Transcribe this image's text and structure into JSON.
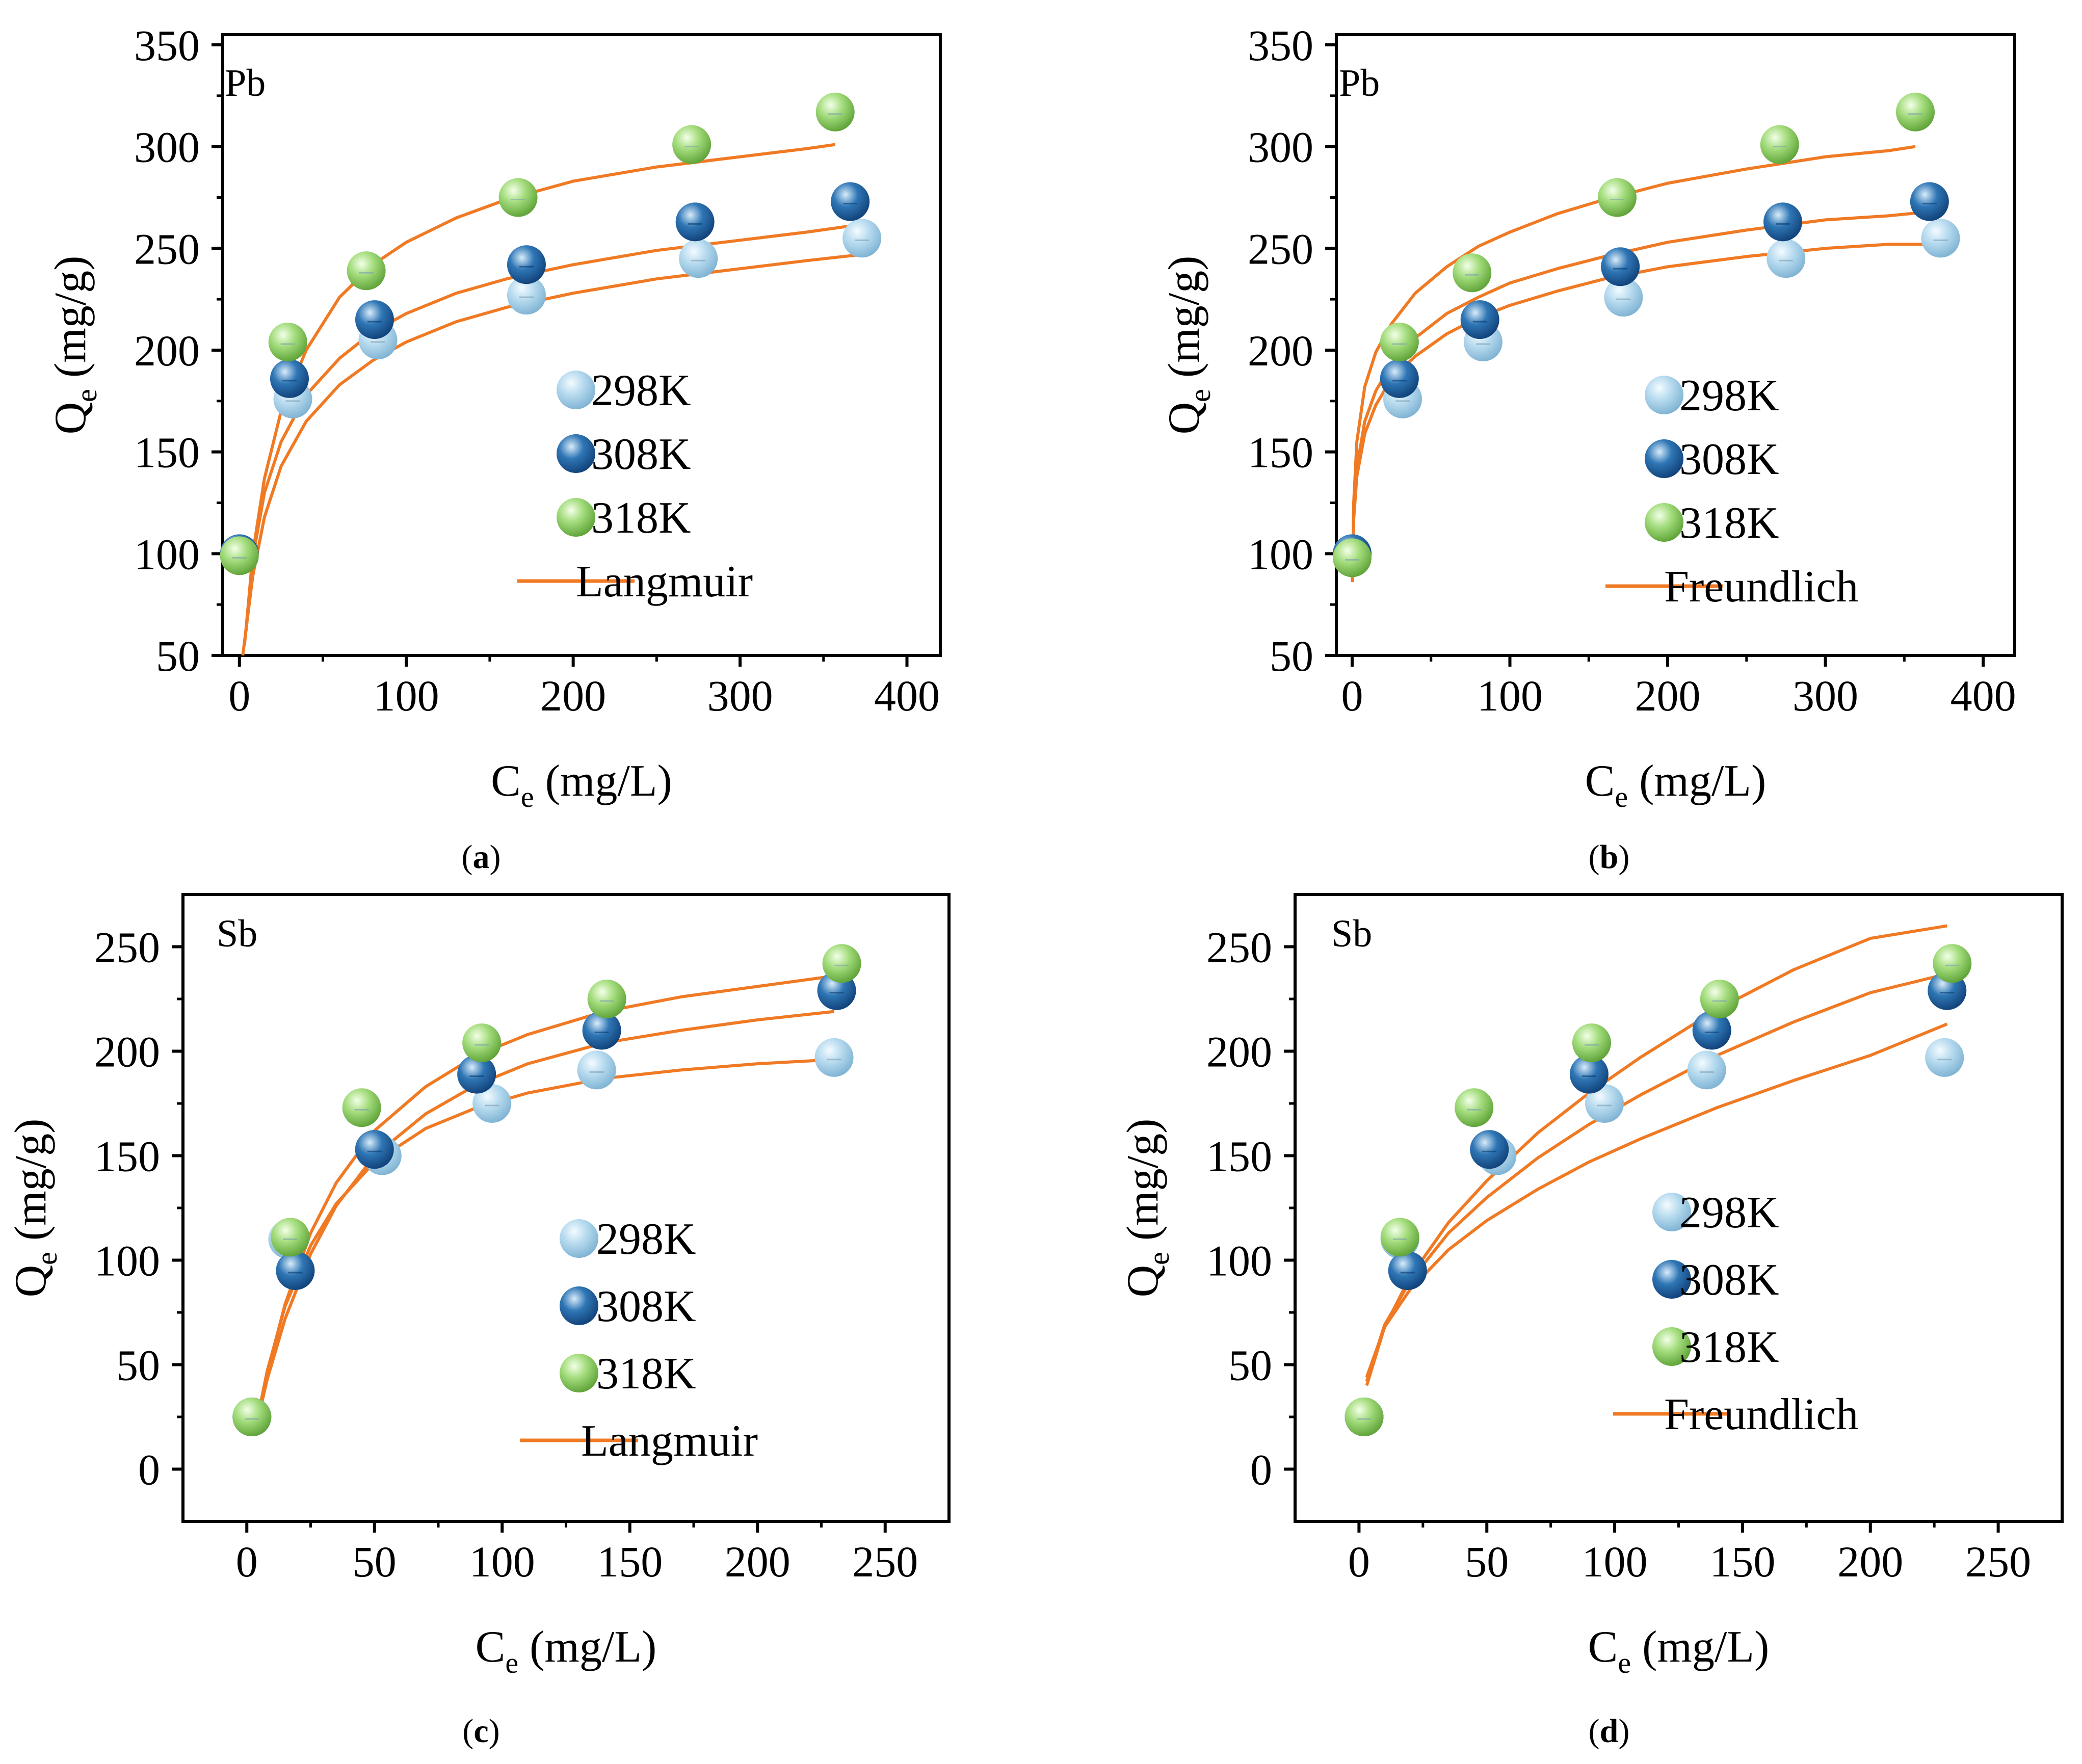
{
  "colors": {
    "fit_line": "#f07a24",
    "temp_298K": "#a9d3ec",
    "temp_308K": "#2f76b5",
    "temp_318K": "#9cdc72",
    "axis": "#000000"
  },
  "chart_data": [
    {
      "panel": "a",
      "caption": {
        "open": "(",
        "letter": "a",
        "close": ")"
      },
      "type": "scatter",
      "metal": "Pb",
      "model": "Langmuir",
      "xlabel": {
        "main": "C",
        "sub": "e",
        "unit": " (mg/L)"
      },
      "ylabel": {
        "main": "Q",
        "sub": "e",
        "unit": " (mg/g)"
      },
      "xlim": [
        -10,
        420
      ],
      "ylim": [
        50,
        355
      ],
      "xticks": [
        0,
        100,
        200,
        300,
        400
      ],
      "yticks": [
        50,
        100,
        150,
        200,
        250,
        300,
        350
      ],
      "xtick_labels": [
        "0",
        "100",
        "200",
        "300",
        "400"
      ],
      "ytick_labels": [
        "50",
        "100",
        "150",
        "200",
        "250",
        "300",
        "350"
      ],
      "series": [
        {
          "name": "298K",
          "x": [
            0,
            32,
            83,
            172,
            275,
            373
          ],
          "y": [
            100,
            176,
            205,
            227,
            245,
            255
          ]
        },
        {
          "name": "308K",
          "x": [
            0,
            30,
            81,
            172,
            273,
            366
          ],
          "y": [
            100,
            186,
            215,
            242,
            263,
            273
          ]
        },
        {
          "name": "318K",
          "x": [
            0,
            29,
            76,
            167,
            271,
            357
          ],
          "y": [
            99,
            204,
            239,
            275,
            301,
            317
          ]
        }
      ],
      "fits": [
        {
          "name": "Langmuir 298K",
          "x": [
            2,
            8,
            15,
            25,
            40,
            60,
            80,
            100,
            130,
            160,
            200,
            250,
            300,
            340,
            373
          ],
          "y": [
            50,
            89,
            118,
            143,
            165,
            183,
            195,
            204,
            214,
            221,
            228,
            235,
            240,
            244,
            247
          ]
        },
        {
          "name": "Langmuir 308K",
          "x": [
            3,
            8,
            15,
            25,
            40,
            60,
            80,
            100,
            130,
            160,
            200,
            250,
            300,
            340,
            366
          ],
          "y": [
            55,
            98,
            130,
            155,
            178,
            196,
            209,
            218,
            228,
            235,
            242,
            249,
            254,
            258,
            261
          ]
        },
        {
          "name": "Langmuir 318K",
          "x": [
            4,
            8,
            15,
            25,
            40,
            60,
            80,
            100,
            130,
            160,
            200,
            250,
            300,
            340,
            357
          ],
          "y": [
            62,
            100,
            137,
            170,
            200,
            226,
            242,
            253,
            265,
            274,
            283,
            290,
            295,
            299,
            301
          ]
        }
      ],
      "legend": [
        {
          "label": "298K",
          "kind": "marker"
        },
        {
          "label": "308K",
          "kind": "marker"
        },
        {
          "label": "318K",
          "kind": "marker"
        },
        {
          "label": "Langmuir",
          "kind": "line"
        }
      ]
    },
    {
      "panel": "b",
      "caption": {
        "open": "(",
        "letter": "b",
        "close": ")"
      },
      "type": "scatter",
      "metal": "Pb",
      "model": "Freundlich",
      "xlabel": {
        "main": "C",
        "sub": "e",
        "unit": " (mg/L)"
      },
      "ylabel": {
        "main": "Q",
        "sub": "e",
        "unit": " (mg/g)"
      },
      "xlim": [
        -10,
        420
      ],
      "ylim": [
        50,
        355
      ],
      "xticks": [
        0,
        100,
        200,
        300,
        400
      ],
      "yticks": [
        50,
        100,
        150,
        200,
        250,
        300,
        350
      ],
      "xtick_labels": [
        "0",
        "100",
        "200",
        "300",
        "400"
      ],
      "ytick_labels": [
        "50",
        "100",
        "150",
        "200",
        "250",
        "300",
        "350"
      ],
      "series": [
        {
          "name": "298K",
          "x": [
            0,
            32,
            83,
            172,
            275,
            373
          ],
          "y": [
            100,
            176,
            204,
            226,
            245,
            255
          ]
        },
        {
          "name": "308K",
          "x": [
            0,
            30,
            81,
            170,
            273,
            366
          ],
          "y": [
            100,
            186,
            215,
            241,
            263,
            273
          ]
        },
        {
          "name": "318K",
          "x": [
            0,
            30,
            76,
            168,
            271,
            357
          ],
          "y": [
            98,
            204,
            238,
            275,
            301,
            317
          ]
        }
      ],
      "fits": [
        {
          "name": "Freundlich 298K",
          "x": [
            0.2,
            1,
            3,
            8,
            15,
            25,
            40,
            60,
            80,
            100,
            130,
            160,
            200,
            250,
            300,
            340,
            373
          ],
          "y": [
            92,
            117,
            138,
            159,
            173,
            186,
            197,
            208,
            216,
            222,
            229,
            235,
            241,
            246,
            250,
            252,
            252
          ]
        },
        {
          "name": "Freundlich 308K",
          "x": [
            0.2,
            1,
            3,
            8,
            15,
            25,
            40,
            60,
            80,
            100,
            130,
            160,
            200,
            250,
            300,
            340,
            366
          ],
          "y": [
            88,
            118,
            142,
            165,
            180,
            193,
            206,
            218,
            226,
            233,
            240,
            246,
            253,
            259,
            264,
            266,
            268
          ]
        },
        {
          "name": "Freundlich 318K",
          "x": [
            0.2,
            1,
            3,
            8,
            15,
            25,
            40,
            60,
            80,
            100,
            130,
            160,
            200,
            250,
            300,
            340,
            357
          ],
          "y": [
            86,
            125,
            155,
            182,
            199,
            213,
            228,
            241,
            251,
            258,
            267,
            274,
            282,
            289,
            295,
            298,
            300
          ]
        }
      ],
      "legend": [
        {
          "label": "298K",
          "kind": "marker"
        },
        {
          "label": "308K",
          "kind": "marker"
        },
        {
          "label": "318K",
          "kind": "marker"
        },
        {
          "label": "Freundlich",
          "kind": "line"
        }
      ]
    },
    {
      "panel": "c",
      "caption": {
        "open": "(",
        "letter": "c",
        "close": ")"
      },
      "type": "scatter",
      "metal": "Sb",
      "model": "Langmuir",
      "xlabel": {
        "main": "C",
        "sub": "e",
        "unit": " (mg/L)"
      },
      "ylabel": {
        "main": "Q",
        "sub": "e",
        "unit": " (mg/g)"
      },
      "xlim": [
        -25,
        275
      ],
      "ylim": [
        -25,
        275
      ],
      "xticks": [
        0,
        50,
        100,
        150,
        200,
        250
      ],
      "yticks": [
        0,
        50,
        100,
        150,
        200,
        250
      ],
      "xtick_labels": [
        "0",
        "50",
        "100",
        "150",
        "200",
        "250"
      ],
      "ytick_labels": [
        "0",
        "50",
        "100",
        "150",
        "200",
        "250"
      ],
      "series": [
        {
          "name": "298K",
          "x": [
            2,
            16,
            53,
            96,
            137,
            230
          ],
          "y": [
            25,
            110,
            150,
            175,
            191,
            197
          ]
        },
        {
          "name": "308K",
          "x": [
            2,
            19,
            50,
            90,
            139,
            231
          ],
          "y": [
            25,
            95,
            153,
            189,
            210,
            229
          ]
        },
        {
          "name": "318K",
          "x": [
            2,
            17,
            45,
            92,
            141,
            233
          ],
          "y": [
            25,
            111,
            173,
            204,
            225,
            242
          ]
        }
      ],
      "fits": [
        {
          "name": "Langmuir 298K",
          "x": [
            4,
            8,
            15,
            25,
            35,
            50,
            70,
            90,
            110,
            140,
            170,
            200,
            230
          ],
          "y": [
            23,
            47,
            78,
            107,
            127,
            147,
            163,
            173,
            180,
            187,
            191,
            194,
            196
          ]
        },
        {
          "name": "Langmuir 308K",
          "x": [
            4,
            8,
            15,
            25,
            35,
            50,
            70,
            90,
            110,
            140,
            170,
            200,
            230
          ],
          "y": [
            22,
            43,
            72,
            103,
            126,
            150,
            170,
            184,
            194,
            204,
            210,
            215,
            219
          ]
        },
        {
          "name": "Langmuir 318K",
          "x": [
            4,
            8,
            15,
            25,
            35,
            50,
            70,
            90,
            110,
            140,
            170,
            200,
            230
          ],
          "y": [
            23,
            46,
            79,
            113,
            137,
            162,
            183,
            198,
            208,
            219,
            226,
            231,
            236
          ]
        }
      ],
      "legend": [
        {
          "label": "298K",
          "kind": "marker"
        },
        {
          "label": "308K",
          "kind": "marker"
        },
        {
          "label": "318K",
          "kind": "marker"
        },
        {
          "label": "Langmuir",
          "kind": "line"
        }
      ]
    },
    {
      "panel": "d",
      "caption": {
        "open": "(",
        "letter": "d",
        "close": ")"
      },
      "type": "scatter",
      "metal": "Sb",
      "model": "Freundlich",
      "xlabel": {
        "main": "C",
        "sub": "e",
        "unit": " (mg/L)"
      },
      "ylabel": {
        "main": "Q",
        "sub": "e",
        "unit": " (mg/g)"
      },
      "xlim": [
        -25,
        275
      ],
      "ylim": [
        -25,
        275
      ],
      "xticks": [
        0,
        50,
        100,
        150,
        200,
        250
      ],
      "yticks": [
        0,
        50,
        100,
        150,
        200,
        250
      ],
      "xtick_labels": [
        "0",
        "50",
        "100",
        "150",
        "200",
        "250"
      ],
      "ytick_labels": [
        "0",
        "50",
        "100",
        "150",
        "200",
        "250"
      ],
      "series": [
        {
          "name": "298K",
          "x": [
            2,
            16,
            54,
            96,
            136,
            229
          ],
          "y": [
            25,
            110,
            150,
            175,
            191,
            197
          ]
        },
        {
          "name": "308K",
          "x": [
            2,
            19,
            51,
            90,
            138,
            230
          ],
          "y": [
            25,
            95,
            153,
            189,
            210,
            229
          ]
        },
        {
          "name": "318K",
          "x": [
            2,
            16,
            45,
            91,
            141,
            232
          ],
          "y": [
            25,
            111,
            173,
            204,
            225,
            242
          ]
        }
      ],
      "fits": [
        {
          "name": "Freundlich 298K",
          "x": [
            3,
            10,
            20,
            35,
            50,
            70,
            90,
            110,
            140,
            170,
            200,
            230
          ],
          "y": [
            44,
            68,
            86,
            105,
            119,
            134,
            147,
            158,
            173,
            186,
            198,
            213
          ]
        },
        {
          "name": "Freundlich 308K",
          "x": [
            3,
            10,
            20,
            35,
            50,
            70,
            90,
            110,
            140,
            170,
            200,
            230
          ],
          "y": [
            42,
            69,
            90,
            113,
            130,
            149,
            165,
            179,
            198,
            214,
            228,
            237
          ]
        },
        {
          "name": "Freundlich 318K",
          "x": [
            3,
            10,
            20,
            35,
            50,
            70,
            90,
            110,
            140,
            170,
            200,
            230
          ],
          "y": [
            40,
            68,
            92,
            118,
            138,
            161,
            180,
            197,
            220,
            239,
            254,
            260
          ]
        }
      ],
      "legend": [
        {
          "label": "298K",
          "kind": "marker"
        },
        {
          "label": "308K",
          "kind": "marker"
        },
        {
          "label": "318K",
          "kind": "marker"
        },
        {
          "label": "Freundlich",
          "kind": "line"
        }
      ]
    }
  ]
}
